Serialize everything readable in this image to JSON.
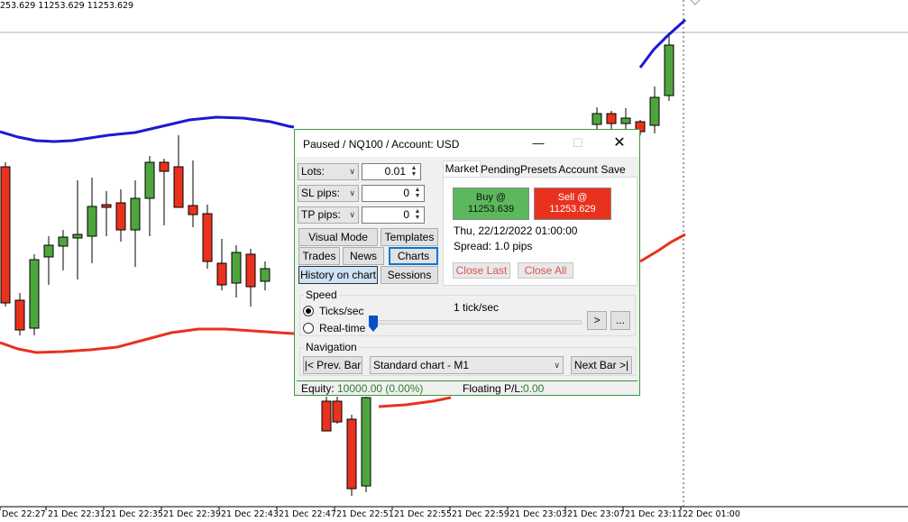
{
  "ohlc_text": "253.629 11253.629 11253.629",
  "time_labels": [
    "Dec 22:27",
    "21 Dec 22:31",
    "21 Dec 22:35",
    "21 Dec 22:39",
    "21 Dec 22:43",
    "21 Dec 22:47",
    "21 Dec 22:51",
    "21 Dec 22:55",
    "21 Dec 22:59",
    "21 Dec 23:03",
    "21 Dec 23:07",
    "21 Dec 23:11",
    "22 Dec 01:00"
  ],
  "colors": {
    "bull": "#4ea53e",
    "bear": "#e8321e",
    "upper_band": "#1a1ad0",
    "lower_band": "#e8321e"
  },
  "dialog": {
    "title": "Paused / NQ100 / Account: USD",
    "lots_label": "Lots:",
    "lots_value": "0.01",
    "sl_label": "SL pips:",
    "sl_value": "0",
    "tp_label": "TP pips:",
    "tp_value": "0",
    "buttons": {
      "visual_mode": "Visual Mode",
      "templates": "Templates",
      "trades": "Trades",
      "news": "News",
      "charts": "Charts",
      "history_on_chart": "History on chart",
      "sessions": "Sessions"
    },
    "tabs": [
      "Market",
      "Pending",
      "Presets",
      "Account",
      "Save"
    ],
    "buy_label": "Buy @",
    "buy_price": "11253.639",
    "sell_label": "Sell @",
    "sell_price": "11253.629",
    "datetime": "Thu, 22/12/2022  01:00:00",
    "spread": "Spread:  1.0 pips",
    "close_last": "Close Last",
    "close_all": "Close All",
    "speed_label": "Speed",
    "ticks_label": "Ticks/sec",
    "realtime_label": "Real-time",
    "speed_value": "1 tick/sec",
    "play_button": ">",
    "more_button": "...",
    "navigation_label": "Navigation",
    "prev_bar": "|< Prev. Bar",
    "chart_type": "Standard chart - M1",
    "next_bar": "Next Bar >|",
    "equity_label": "Equity:",
    "equity_value": "10000.00  (0.00%)",
    "floating_label": "Floating P/L:",
    "floating_value": "0.00"
  }
}
